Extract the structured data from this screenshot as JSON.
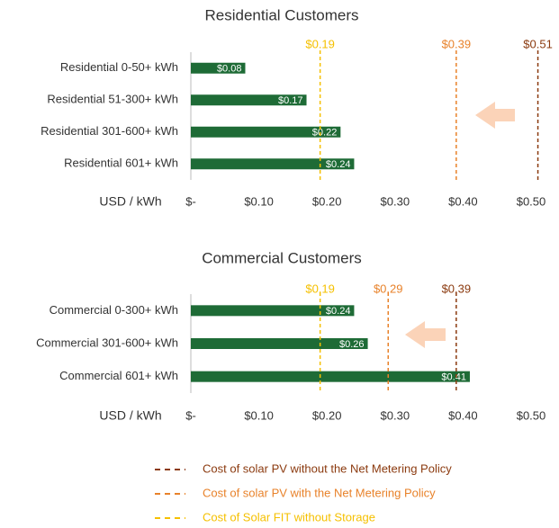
{
  "chart_data": [
    {
      "type": "bar",
      "orientation": "horizontal",
      "title": "Residential Customers",
      "categories": [
        "Residential 0-50+ kWh",
        "Residential 51-300+ kWh",
        "Residential 301-600+ kWh",
        "Residential 601+ kWh"
      ],
      "values": [
        0.08,
        0.17,
        0.22,
        0.24
      ],
      "value_labels": [
        "$0.08",
        "$0.17",
        "$0.22",
        "$0.24"
      ],
      "color": "#1e6b36",
      "x_label": "USD / kWh",
      "xlim": [
        0,
        0.5
      ],
      "xticks": [
        {
          "value": 0,
          "label": "$-"
        },
        {
          "value": 0.1,
          "label": "$0.10"
        },
        {
          "value": 0.2,
          "label": "$0.20"
        },
        {
          "value": 0.3,
          "label": "$0.30"
        },
        {
          "value": 0.4,
          "label": "$0.40"
        },
        {
          "value": 0.5,
          "label": "$0.50"
        }
      ],
      "reference_lines": [
        {
          "value": 0.19,
          "label": "$0.19",
          "color": "#f5c000"
        },
        {
          "value": 0.39,
          "label": "$0.39",
          "color": "#e8822a"
        },
        {
          "value": 0.51,
          "label": "$0.51",
          "color": "#8b3a0f"
        }
      ]
    },
    {
      "type": "bar",
      "orientation": "horizontal",
      "title": "Commercial Customers",
      "categories": [
        "Commercial 0-300+ kWh",
        "Commercial 301-600+ kWh",
        "Commercial 601+ kWh"
      ],
      "values": [
        0.24,
        0.26,
        0.41
      ],
      "value_labels": [
        "$0.24",
        "$0.26",
        "$0.41"
      ],
      "color": "#1e6b36",
      "x_label": "USD / kWh",
      "xlim": [
        0,
        0.5
      ],
      "xticks": [
        {
          "value": 0,
          "label": "$-"
        },
        {
          "value": 0.1,
          "label": "$0.10"
        },
        {
          "value": 0.2,
          "label": "$0.20"
        },
        {
          "value": 0.3,
          "label": "$0.30"
        },
        {
          "value": 0.4,
          "label": "$0.40"
        },
        {
          "value": 0.5,
          "label": "$0.50"
        }
      ],
      "reference_lines": [
        {
          "value": 0.19,
          "label": "$0.19",
          "color": "#f5c000"
        },
        {
          "value": 0.29,
          "label": "$0.29",
          "color": "#e8822a"
        },
        {
          "value": 0.39,
          "label": "$0.39",
          "color": "#8b3a0f"
        }
      ]
    }
  ],
  "legend": [
    {
      "name": "Cost of solar PV without the Net Metering Policy",
      "color": "#8b3a0f"
    },
    {
      "name": "Cost of solar PV with the Net Metering Policy",
      "color": "#e8822a"
    },
    {
      "name": "Cost of Solar FIT without Storage",
      "color": "#f5c000"
    }
  ]
}
